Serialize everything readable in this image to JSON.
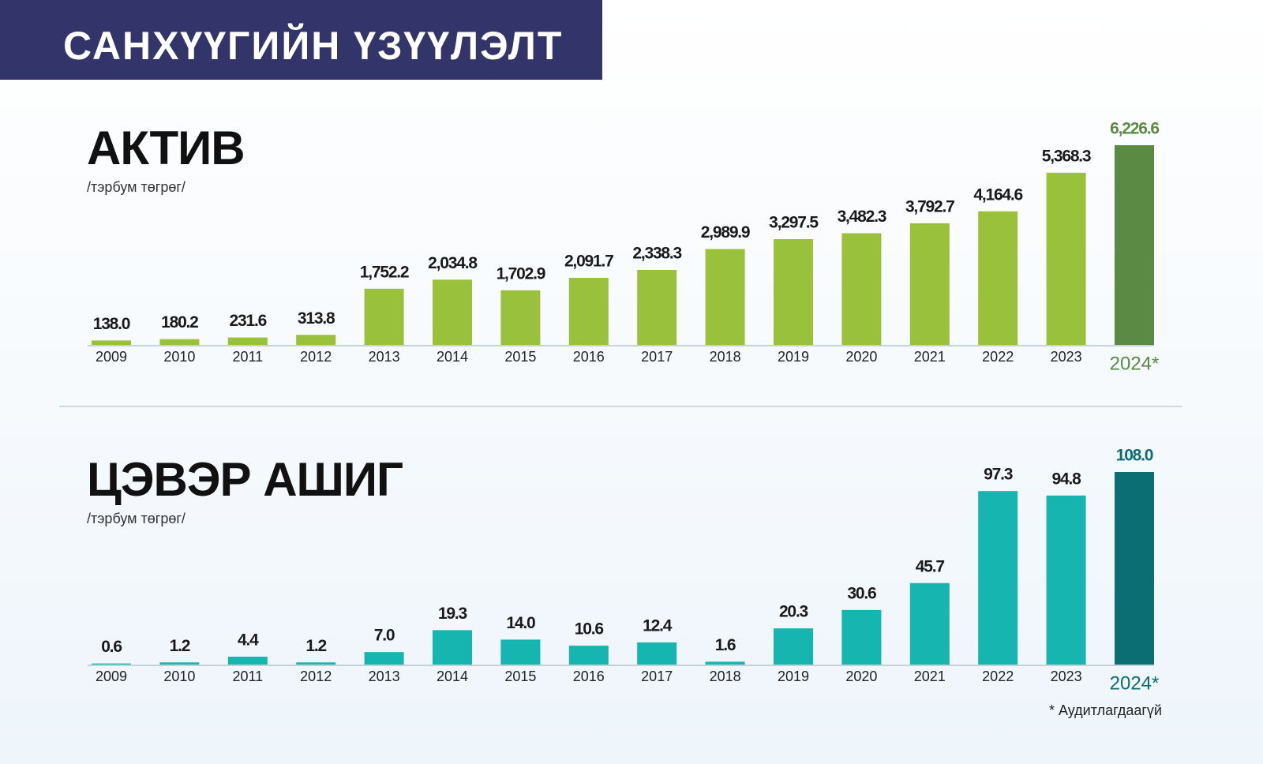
{
  "header": {
    "title": "САНХҮҮГИЙН ҮЗҮҮЛЭЛТ"
  },
  "chart_data": [
    {
      "type": "bar",
      "title": "АКТИВ",
      "subtitle": "/тэрбум төгрөг/",
      "categories": [
        "2009",
        "2010",
        "2011",
        "2012",
        "2013",
        "2014",
        "2015",
        "2016",
        "2017",
        "2018",
        "2019",
        "2020",
        "2021",
        "2022",
        "2023",
        "2024*"
      ],
      "values": [
        138.0,
        180.2,
        231.6,
        313.8,
        1752.2,
        2034.8,
        1702.9,
        2091.7,
        2338.3,
        2989.9,
        3297.5,
        3482.3,
        3792.7,
        4164.6,
        5368.3,
        6226.6
      ],
      "value_labels": [
        "138.0",
        "180.2",
        "231.6",
        "313.8",
        "1,752.2",
        "2,034.8",
        "1,702.9",
        "2,091.7",
        "2,338.3",
        "2,989.9",
        "3,297.5",
        "3,482.3",
        "3,792.7",
        "4,164.6",
        "5,368.3",
        "6,226.6"
      ],
      "colors": [
        "#9ac13c",
        "#9ac13c",
        "#9ac13c",
        "#9ac13c",
        "#9ac13c",
        "#9ac13c",
        "#9ac13c",
        "#9ac13c",
        "#9ac13c",
        "#9ac13c",
        "#9ac13c",
        "#9ac13c",
        "#9ac13c",
        "#9ac13c",
        "#9ac13c",
        "#5b8a44"
      ]
    },
    {
      "type": "bar",
      "title": "ЦЭВЭР АШИГ",
      "subtitle": "/тэрбум төгрөг/",
      "categories": [
        "2009",
        "2010",
        "2011",
        "2012",
        "2013",
        "2014",
        "2015",
        "2016",
        "2017",
        "2018",
        "2019",
        "2020",
        "2021",
        "2022",
        "2023",
        "2024*"
      ],
      "values": [
        0.6,
        1.2,
        4.4,
        1.2,
        7.0,
        19.3,
        14.0,
        10.6,
        12.4,
        1.6,
        20.3,
        30.6,
        45.7,
        97.3,
        94.8,
        108.0
      ],
      "value_labels": [
        "0.6",
        "1.2",
        "4.4",
        "1.2",
        "7.0",
        "19.3",
        "14.0",
        "10.6",
        "12.4",
        "1.6",
        "20.3",
        "30.6",
        "45.7",
        "97.3",
        "94.8",
        "108.0"
      ],
      "colors": [
        "#17b5b0",
        "#17b5b0",
        "#17b5b0",
        "#17b5b0",
        "#17b5b0",
        "#17b5b0",
        "#17b5b0",
        "#17b5b0",
        "#17b5b0",
        "#17b5b0",
        "#17b5b0",
        "#17b5b0",
        "#17b5b0",
        "#17b5b0",
        "#17b5b0",
        "#0b6e73"
      ]
    }
  ],
  "note": "* Аудитлагдаагүй"
}
